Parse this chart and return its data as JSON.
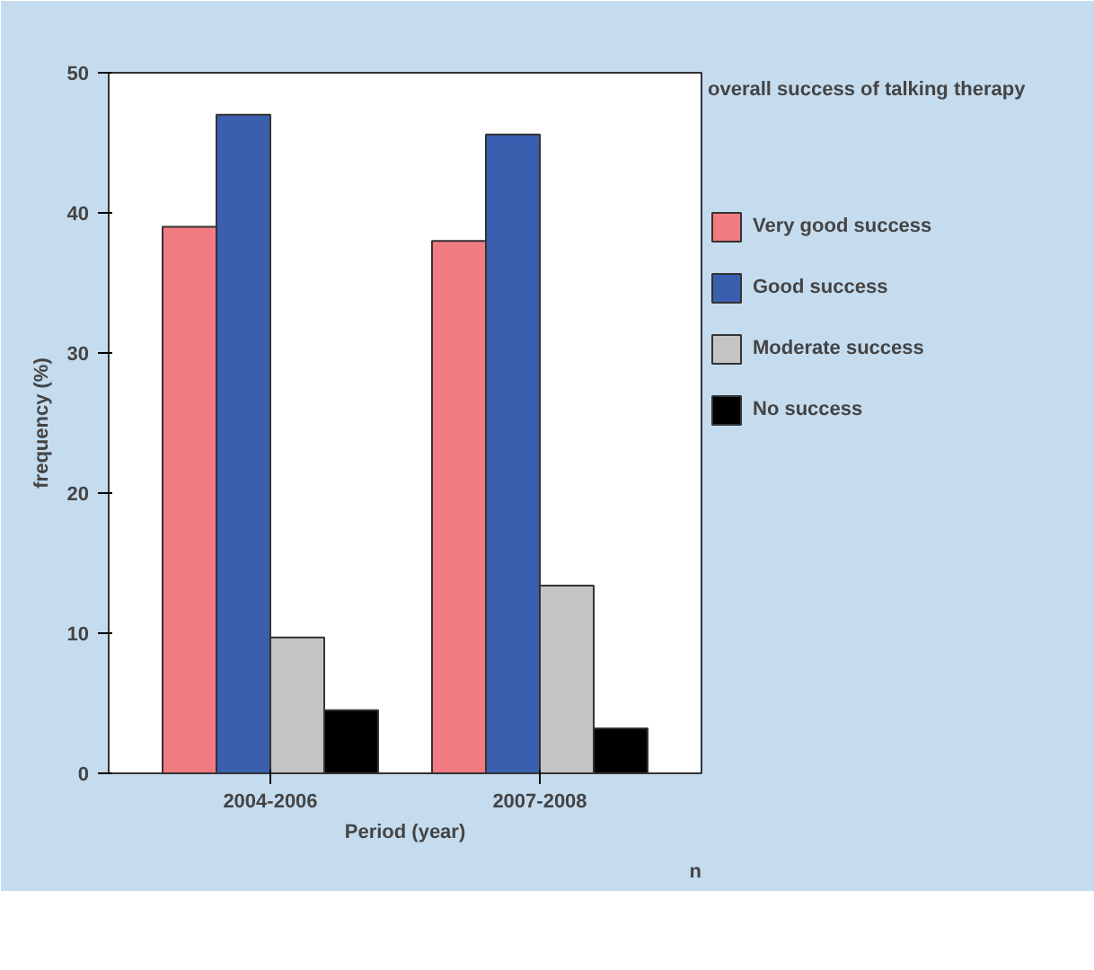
{
  "chart_data": {
    "type": "bar",
    "xlabel": "Period (year)",
    "ylabel": "frequency (%)",
    "legend_title": "overall success of talking therapy",
    "categories": [
      "2004-2006",
      "2007-2008"
    ],
    "series": [
      {
        "name": "Very good success",
        "color": "#f07b80",
        "values": [
          39,
          38
        ]
      },
      {
        "name": "Good success",
        "color": "#3a5fae",
        "values": [
          47,
          45.6
        ]
      },
      {
        "name": "Moderate success",
        "color": "#c4c4c4",
        "values": [
          9.7,
          13.4
        ]
      },
      {
        "name": "No success",
        "color": "#000000",
        "values": [
          4.5,
          3.2
        ]
      }
    ],
    "ylim": [
      0,
      50
    ],
    "yticks": [
      0,
      10,
      20,
      30,
      40,
      50
    ],
    "grid": false,
    "legend": "right",
    "annotations": [
      "n"
    ]
  }
}
